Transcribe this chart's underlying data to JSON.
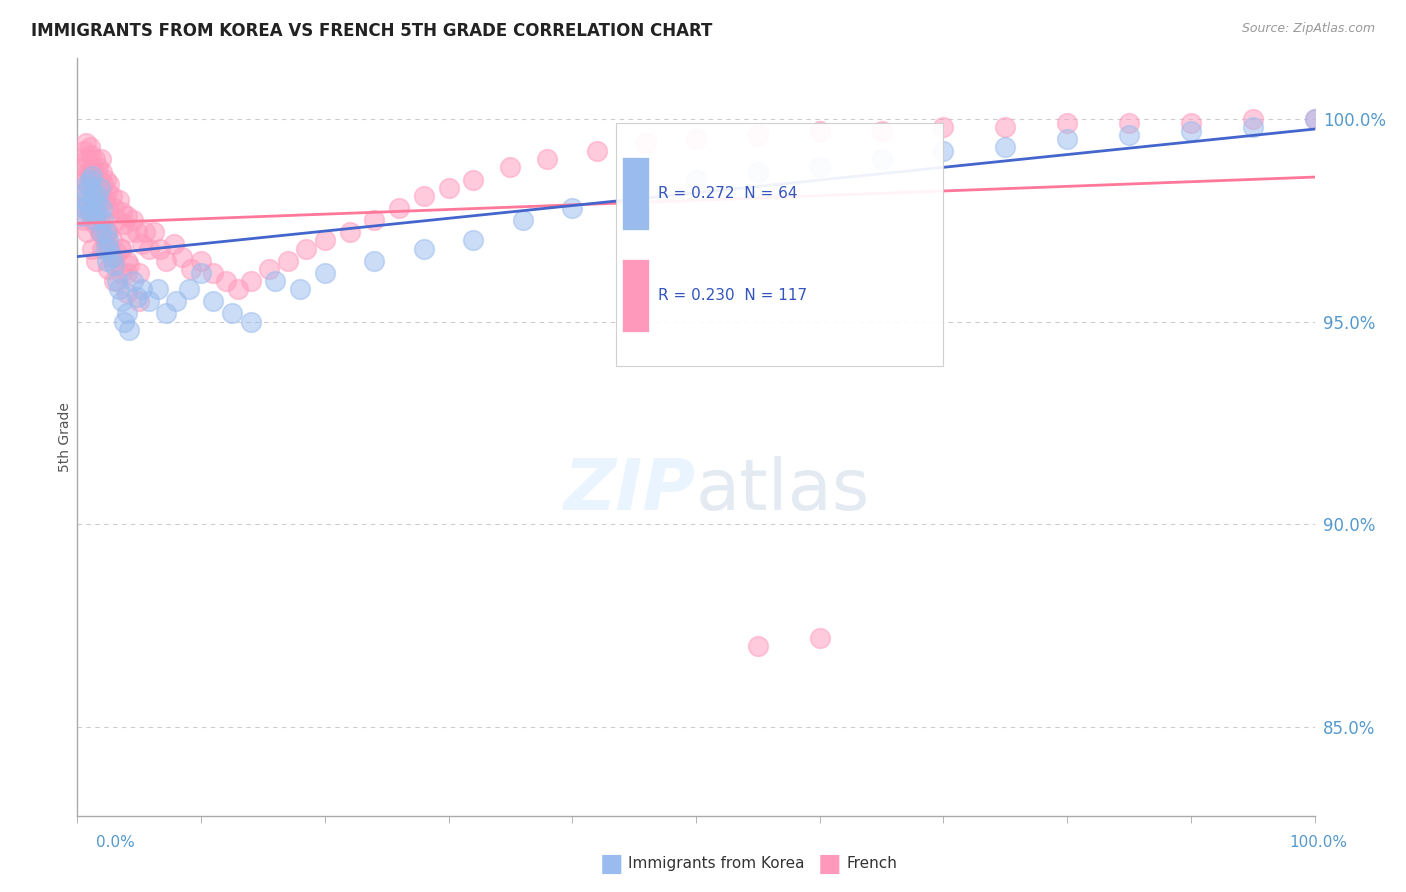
{
  "title": "IMMIGRANTS FROM KOREA VS FRENCH 5TH GRADE CORRELATION CHART",
  "source": "Source: ZipAtlas.com",
  "ylabel": "5th Grade",
  "ytick_labels": [
    "85.0%",
    "90.0%",
    "95.0%",
    "100.0%"
  ],
  "ytick_values": [
    0.85,
    0.9,
    0.95,
    1.0
  ],
  "xmin": 0.0,
  "xmax": 1.0,
  "ymin": 0.828,
  "ymax": 1.015,
  "blue_color": "#99BBEE",
  "pink_color": "#FF99BB",
  "trendline_blue_color": "#4466CC",
  "trendline_pink_color": "#FF7799",
  "legend_r_blue": "R = 0.272",
  "legend_n_blue": "N = 64",
  "legend_r_pink": "R = 0.230",
  "legend_n_pink": "N = 117",
  "blue_x": [
    0.003,
    0.005,
    0.006,
    0.007,
    0.008,
    0.009,
    0.01,
    0.01,
    0.011,
    0.012,
    0.013,
    0.014,
    0.015,
    0.016,
    0.017,
    0.018,
    0.019,
    0.02,
    0.021,
    0.022,
    0.023,
    0.024,
    0.025,
    0.026,
    0.028,
    0.03,
    0.032,
    0.034,
    0.036,
    0.038,
    0.04,
    0.042,
    0.045,
    0.048,
    0.052,
    0.058,
    0.065,
    0.072,
    0.08,
    0.09,
    0.1,
    0.11,
    0.125,
    0.14,
    0.16,
    0.18,
    0.2,
    0.24,
    0.28,
    0.32,
    0.36,
    0.4,
    0.45,
    0.5,
    0.55,
    0.6,
    0.65,
    0.7,
    0.75,
    0.8,
    0.85,
    0.9,
    0.95,
    1.0
  ],
  "blue_y": [
    0.976,
    0.978,
    0.98,
    0.982,
    0.984,
    0.979,
    0.985,
    0.977,
    0.983,
    0.986,
    0.981,
    0.975,
    0.979,
    0.977,
    0.981,
    0.983,
    0.972,
    0.978,
    0.975,
    0.968,
    0.972,
    0.965,
    0.97,
    0.968,
    0.966,
    0.964,
    0.96,
    0.958,
    0.955,
    0.95,
    0.952,
    0.948,
    0.96,
    0.956,
    0.958,
    0.955,
    0.958,
    0.952,
    0.955,
    0.958,
    0.962,
    0.955,
    0.952,
    0.95,
    0.96,
    0.958,
    0.962,
    0.965,
    0.968,
    0.97,
    0.975,
    0.978,
    0.982,
    0.985,
    0.987,
    0.988,
    0.99,
    0.992,
    0.993,
    0.995,
    0.996,
    0.997,
    0.998,
    1.0
  ],
  "pink_x": [
    0.003,
    0.004,
    0.005,
    0.006,
    0.007,
    0.008,
    0.009,
    0.01,
    0.01,
    0.011,
    0.012,
    0.013,
    0.014,
    0.015,
    0.016,
    0.017,
    0.018,
    0.019,
    0.02,
    0.021,
    0.022,
    0.023,
    0.024,
    0.025,
    0.026,
    0.028,
    0.03,
    0.032,
    0.034,
    0.036,
    0.038,
    0.04,
    0.042,
    0.045,
    0.048,
    0.052,
    0.055,
    0.058,
    0.062,
    0.067,
    0.072,
    0.078,
    0.085,
    0.092,
    0.1,
    0.11,
    0.12,
    0.13,
    0.14,
    0.155,
    0.17,
    0.185,
    0.2,
    0.22,
    0.24,
    0.26,
    0.28,
    0.3,
    0.32,
    0.35,
    0.38,
    0.42,
    0.46,
    0.5,
    0.55,
    0.6,
    0.65,
    0.7,
    0.75,
    0.8,
    0.85,
    0.9,
    0.95,
    1.0,
    0.005,
    0.008,
    0.012,
    0.015,
    0.02,
    0.025,
    0.03,
    0.04,
    0.05,
    0.008,
    0.01,
    0.015,
    0.02,
    0.025,
    0.03,
    0.035,
    0.004,
    0.006,
    0.012,
    0.018,
    0.024,
    0.035,
    0.04,
    0.05,
    0.028,
    0.032,
    0.042,
    0.018,
    0.025,
    0.6,
    0.55,
    0.02,
    0.015,
    0.025,
    0.035,
    0.012,
    0.018,
    0.008,
    0.014,
    0.022,
    0.03,
    0.04,
    0.01,
    0.02
  ],
  "pink_y": [
    0.985,
    0.99,
    0.992,
    0.988,
    0.994,
    0.99,
    0.987,
    0.993,
    0.986,
    0.991,
    0.988,
    0.985,
    0.99,
    0.987,
    0.983,
    0.988,
    0.985,
    0.99,
    0.987,
    0.984,
    0.98,
    0.985,
    0.982,
    0.978,
    0.984,
    0.981,
    0.978,
    0.975,
    0.98,
    0.977,
    0.974,
    0.976,
    0.972,
    0.975,
    0.972,
    0.969,
    0.972,
    0.968,
    0.972,
    0.968,
    0.965,
    0.969,
    0.966,
    0.963,
    0.965,
    0.962,
    0.96,
    0.958,
    0.96,
    0.963,
    0.965,
    0.968,
    0.97,
    0.972,
    0.975,
    0.978,
    0.981,
    0.983,
    0.985,
    0.988,
    0.99,
    0.992,
    0.994,
    0.995,
    0.996,
    0.997,
    0.997,
    0.998,
    0.998,
    0.999,
    0.999,
    0.999,
    1.0,
    1.0,
    0.975,
    0.972,
    0.968,
    0.965,
    0.968,
    0.963,
    0.96,
    0.957,
    0.955,
    0.98,
    0.977,
    0.975,
    0.972,
    0.968,
    0.965,
    0.962,
    0.985,
    0.982,
    0.978,
    0.975,
    0.972,
    0.968,
    0.965,
    0.962,
    0.97,
    0.967,
    0.964,
    0.972,
    0.968,
    0.872,
    0.87,
    0.98,
    0.976,
    0.972,
    0.968,
    0.975,
    0.972,
    0.978,
    0.974,
    0.97,
    0.966,
    0.962,
    0.985,
    0.98
  ]
}
